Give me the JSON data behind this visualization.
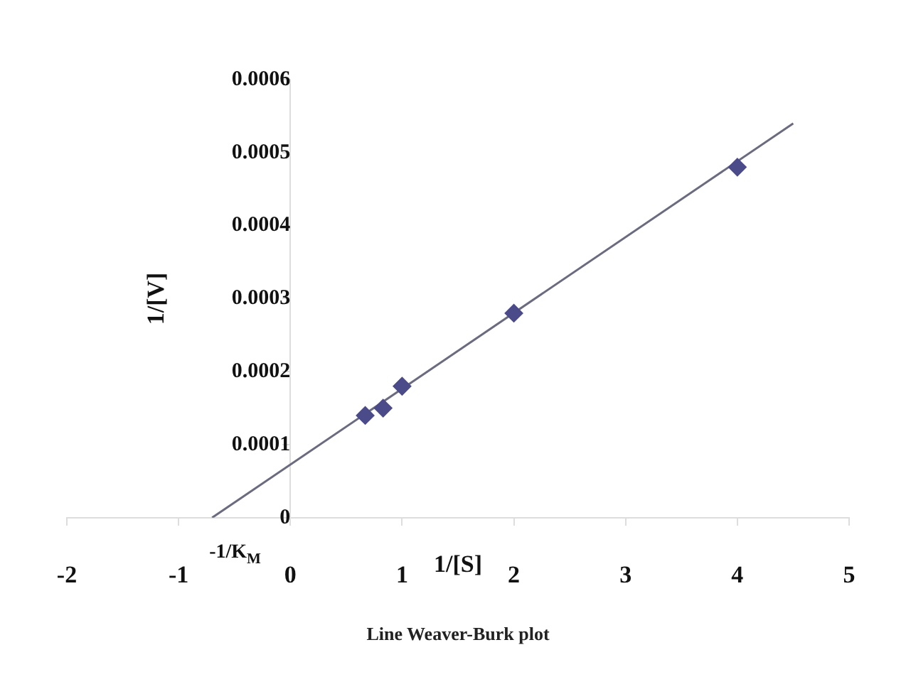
{
  "chart_data": {
    "type": "scatter",
    "title": "Line Weaver-Burk plot",
    "xlabel": "1/[S]",
    "ylabel": "1/[V]",
    "annotations": [
      "-1/K$_{M}$"
    ],
    "xlim": [
      -2,
      5
    ],
    "xticks": [
      -2,
      -1,
      0,
      1,
      2,
      3,
      4,
      5
    ],
    "ylim": [
      0,
      0.0006
    ],
    "yticks": [
      0,
      0.0001,
      0.0002,
      0.0003,
      0.0004,
      0.0005,
      0.0006
    ],
    "grid": false,
    "legend": false,
    "marker": "diamond",
    "series": [
      {
        "type": "scatter",
        "color": "#4b4b8a",
        "x": [
          0.67,
          0.83,
          1,
          2,
          4
        ],
        "values": [
          0.00014,
          0.00015,
          0.00018,
          0.00028,
          0.00048
        ]
      },
      {
        "type": "line",
        "color": "#6b6b80",
        "marker": "none",
        "line_style": "solid",
        "x": [
          -0.7,
          4.5
        ],
        "values": [
          0,
          0.00054
        ]
      }
    ]
  }
}
